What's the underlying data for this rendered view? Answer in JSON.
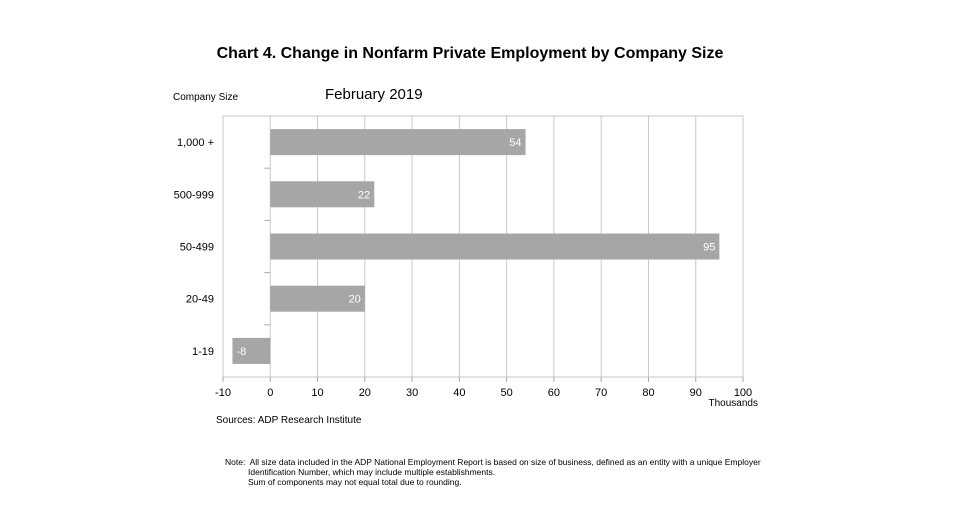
{
  "chart_data": {
    "type": "bar",
    "orientation": "horizontal",
    "title": "Chart 4. Change in Nonfarm Private Employment by Company Size",
    "subtitle": "February 2019",
    "ylabel": "Company Size",
    "xlabel": "Thousands",
    "categories": [
      "1,000 +",
      "500-999",
      "50-499",
      "20-49",
      "1-19"
    ],
    "values": [
      54,
      22,
      95,
      20,
      -8
    ],
    "data_labels": [
      "54",
      "22",
      "95",
      "20",
      "-8"
    ],
    "xlim": [
      -10,
      100
    ],
    "xticks": [
      -10,
      0,
      10,
      20,
      30,
      40,
      50,
      60,
      70,
      80,
      90,
      100
    ],
    "grid": true,
    "bar_color": "#a6a6a6",
    "source": "Sources: ADP Research Institute",
    "note": [
      "Note:  All size data included in the ADP National Employment Report is based on size of business, defined as an entity with a unique Employer",
      "Identification Number, which may include multiple establishments.",
      "Sum of components may not equal total due to rounding."
    ]
  }
}
